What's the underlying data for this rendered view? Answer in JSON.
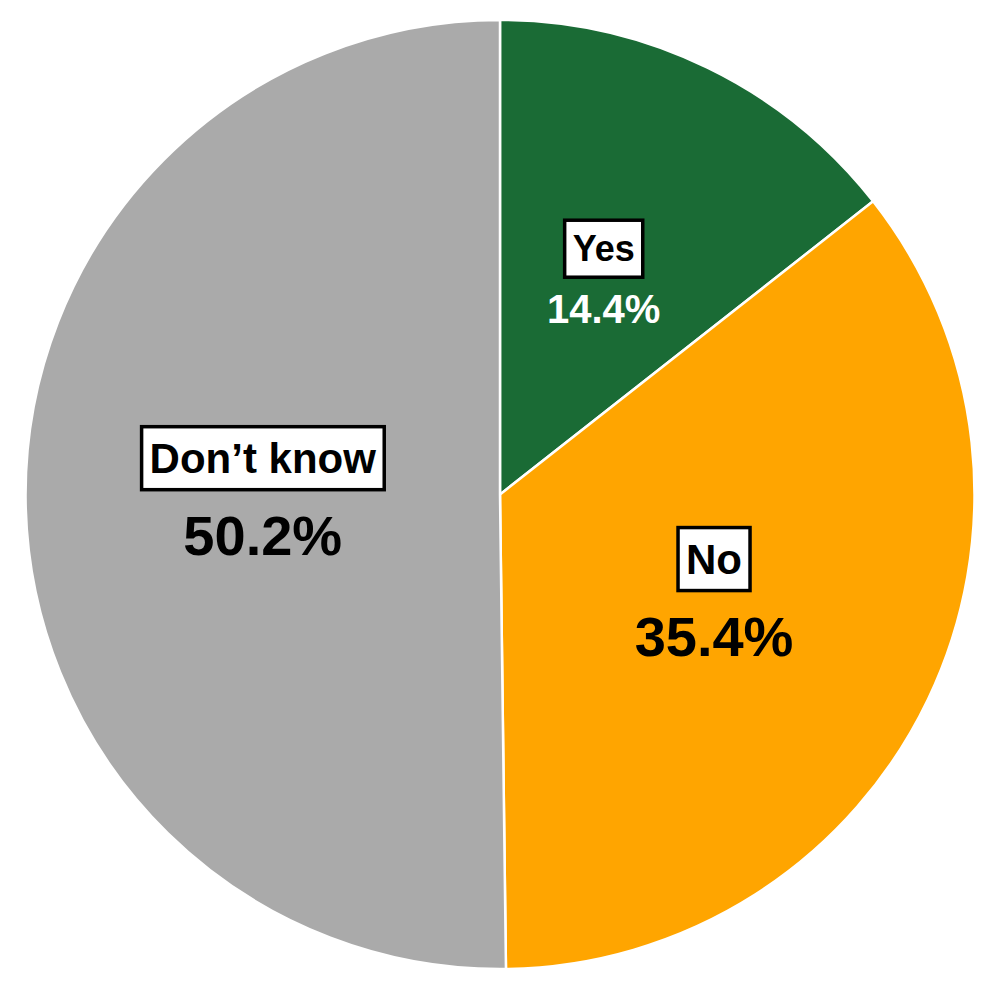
{
  "chart_data": {
    "type": "pie",
    "categories": [
      "Yes",
      "No",
      "Don’t know"
    ],
    "values": [
      14.4,
      35.4,
      50.2
    ],
    "value_labels": [
      "14.4%",
      "35.4%",
      "50.2%"
    ],
    "colors": [
      "#1a6b35",
      "#ffa500",
      "#aaaaaa"
    ],
    "data_labels": true
  }
}
